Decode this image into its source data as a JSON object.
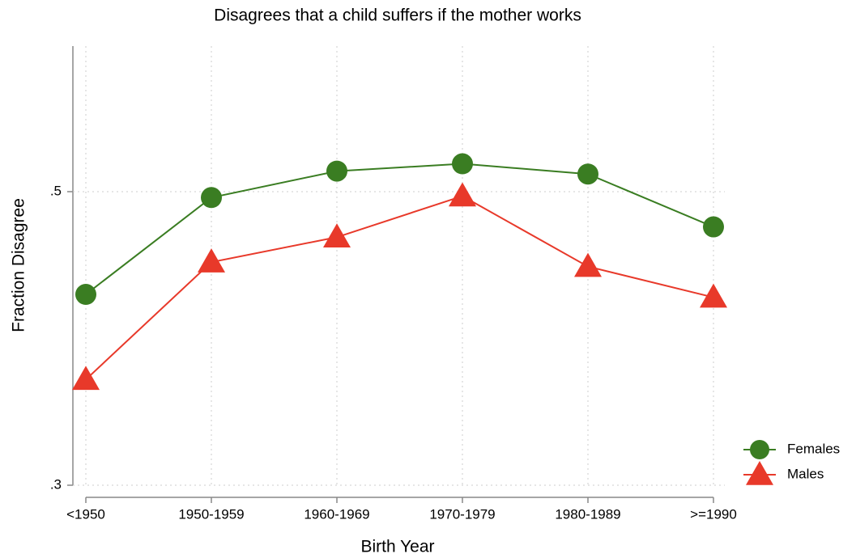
{
  "chart_data": {
    "type": "line",
    "title": "Disagrees that a child suffers if the mother works",
    "x_label": "Birth Year",
    "y_label": "Fraction Disagree",
    "categories": [
      "<1950",
      "1950-1959",
      "1960-1969",
      "1970-1979",
      "1980-1989",
      ">=1990"
    ],
    "series": [
      {
        "name": "Females",
        "color": "#3a7d22",
        "marker": "circle",
        "values": [
          0.43,
          0.496,
          0.514,
          0.519,
          0.512,
          0.476
        ]
      },
      {
        "name": "Males",
        "color": "#e8392a",
        "marker": "triangle",
        "values": [
          0.372,
          0.452,
          0.469,
          0.497,
          0.449,
          0.428
        ]
      }
    ],
    "ylim": [
      0.3,
      0.6
    ],
    "yticks": [
      {
        "value": 0.3,
        "label": ".3"
      },
      {
        "value": 0.5,
        "label": ".5"
      }
    ],
    "grid": true,
    "legend": "bottom-right"
  }
}
